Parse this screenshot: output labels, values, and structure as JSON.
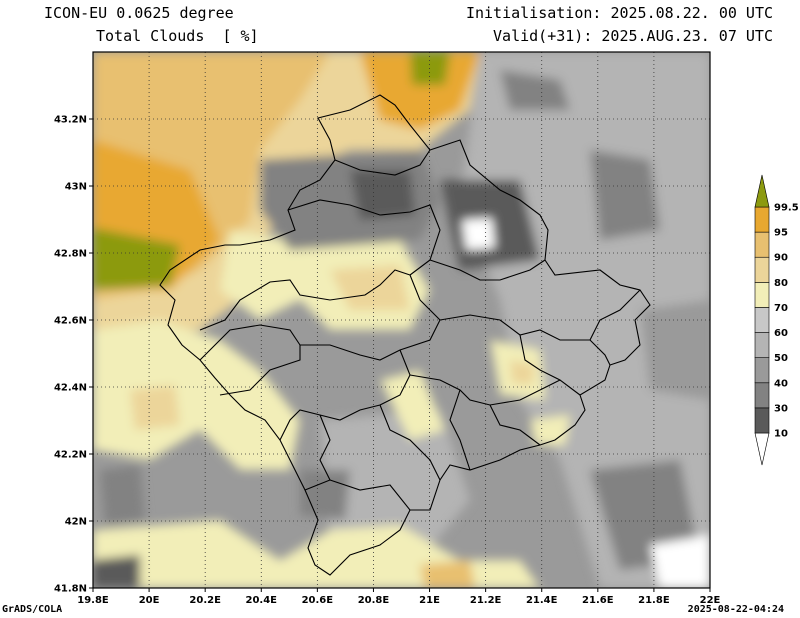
{
  "header": {
    "model": "ICON-EU 0.0625 degree",
    "variable": "Total Clouds",
    "unit": "[ %]",
    "init": "Initialisation: 2025.08.22. 00 UTC",
    "valid": "Valid(+31): 2025.AUG.23. 07 UTC"
  },
  "footer": {
    "software": "GrADS/COLA",
    "timestamp": "2025-08-22-04:24"
  },
  "map": {
    "lon_ticks": [
      "19.8E",
      "20E",
      "20.2E",
      "20.4E",
      "20.6E",
      "20.8E",
      "21E",
      "21.2E",
      "21.4E",
      "21.6E",
      "21.8E",
      "22E"
    ],
    "lat_ticks": [
      "43.2N",
      "43N",
      "42.8N",
      "42.6N",
      "42.4N",
      "42.2N",
      "42N",
      "41.8N"
    ],
    "lon_range": [
      19.8,
      22.0
    ],
    "lat_range": [
      41.8,
      43.4
    ],
    "grid": "dotted"
  },
  "colorbar": {
    "labels": [
      "10",
      "30",
      "40",
      "50",
      "60",
      "70",
      "80",
      "90",
      "95",
      "99.5"
    ],
    "colors": [
      "#ffffff",
      "#5a5a5a",
      "#828282",
      "#9a9a9a",
      "#b4b4b4",
      "#c8c8c8",
      "#f2eeb8",
      "#ecd59a",
      "#e8c070",
      "#e8a830",
      "#8c9a10"
    ]
  }
}
